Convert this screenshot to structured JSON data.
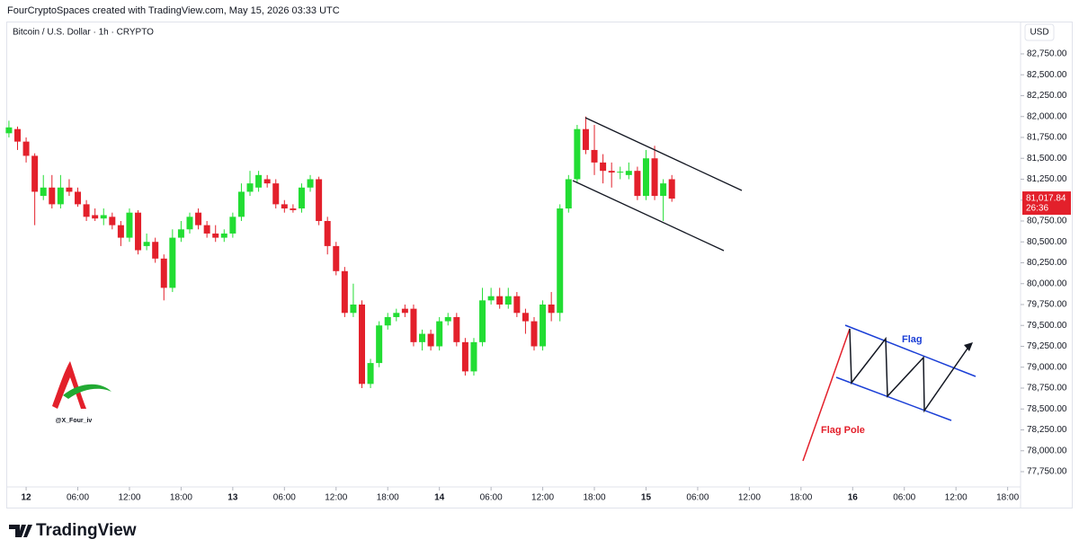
{
  "header": {
    "credit": "FourCryptoSpaces created with TradingView.com, May 15, 2026 03:33 UTC",
    "symbol": "Bitcoin / U.S. Dollar · 1h · CRYPTO",
    "currency": "USD"
  },
  "watermark": "@X_Four_iv",
  "footer": "TradingView",
  "chart_data": {
    "type": "candlestick",
    "up_color": "#22dd33",
    "down_color": "#e3202b",
    "x": [
      -2,
      -1,
      0,
      1,
      2,
      3,
      4,
      5,
      6,
      7,
      8,
      9,
      10,
      11,
      12,
      13,
      14,
      15,
      16,
      17,
      18,
      19,
      20,
      21,
      22,
      23,
      24,
      25,
      26,
      27,
      28,
      29,
      30,
      31,
      32,
      33,
      34,
      35,
      36,
      37,
      38,
      39,
      40,
      41,
      42,
      43,
      44,
      45,
      46,
      47,
      48,
      49,
      50,
      51,
      52,
      53,
      54,
      55,
      56,
      57,
      58,
      59,
      60,
      61,
      62,
      63,
      64,
      65,
      66,
      67,
      68,
      69,
      70,
      71,
      72,
      73,
      74,
      75
    ],
    "open": [
      81800,
      81850,
      81700,
      81530,
      81050,
      81150,
      80950,
      81150,
      81100,
      80950,
      80820,
      80780,
      80800,
      80700,
      80550,
      80850,
      80450,
      80500,
      80300,
      79950,
      80550,
      80650,
      80850,
      80700,
      80600,
      80550,
      80600,
      80800,
      81100,
      81150,
      81250,
      81200,
      80950,
      80900,
      80900,
      81150,
      81250,
      80750,
      80450,
      80150,
      79650,
      79750,
      78800,
      79050,
      79500,
      79600,
      79700,
      79700,
      79300,
      79400,
      79250,
      79550,
      79600,
      79300,
      78950,
      79300,
      79800,
      79850,
      79750,
      79850,
      79650,
      79550,
      79250,
      79750,
      79650,
      80900,
      81250,
      81850,
      81600,
      81450,
      81350,
      81330,
      81300,
      81350,
      81050,
      81500,
      81050,
      81250
    ],
    "high": [
      81950,
      81880,
      81750,
      81560,
      81300,
      81300,
      81300,
      81250,
      81150,
      81000,
      80900,
      80900,
      80850,
      80750,
      80900,
      80880,
      80600,
      80550,
      80350,
      80650,
      80750,
      80850,
      80900,
      80750,
      80700,
      80650,
      80850,
      81200,
      81350,
      81350,
      81300,
      81250,
      81000,
      80950,
      81200,
      81300,
      81280,
      80800,
      80500,
      80200,
      80000,
      79800,
      79100,
      79550,
      79650,
      79700,
      79750,
      79750,
      79450,
      79450,
      79600,
      79650,
      79650,
      79350,
      79350,
      79950,
      79950,
      79950,
      79950,
      79900,
      79700,
      79600,
      79800,
      79900,
      80950,
      81300,
      81900,
      82000,
      81900,
      81550,
      81450,
      81400,
      81450,
      81400,
      81600,
      81650,
      81250,
      81300
    ],
    "low": [
      81750,
      81600,
      81450,
      80700,
      81000,
      80900,
      80900,
      81050,
      80920,
      80750,
      80750,
      80700,
      80650,
      80450,
      80500,
      80350,
      80400,
      80250,
      79800,
      79900,
      80500,
      80600,
      80650,
      80550,
      80500,
      80500,
      80550,
      80750,
      81050,
      81100,
      81150,
      80900,
      80850,
      80850,
      80850,
      81100,
      80700,
      80350,
      80100,
      79600,
      79600,
      78750,
      78750,
      79000,
      79450,
      79550,
      79600,
      79250,
      79200,
      79200,
      79200,
      79500,
      79250,
      78900,
      78900,
      79250,
      79750,
      79700,
      79700,
      79600,
      79400,
      79200,
      79200,
      79550,
      79550,
      80850,
      81200,
      81550,
      81300,
      81200,
      81150,
      81250,
      81250,
      81000,
      81000,
      81000,
      80750,
      80980
    ],
    "close": [
      81870,
      81700,
      81530,
      81100,
      81150,
      80950,
      81150,
      81100,
      80950,
      80800,
      80780,
      80820,
      80700,
      80550,
      80850,
      80400,
      80500,
      80300,
      79950,
      80550,
      80650,
      80800,
      80700,
      80600,
      80550,
      80600,
      80800,
      81100,
      81200,
      81300,
      81200,
      80950,
      80900,
      80880,
      81150,
      81250,
      80750,
      80450,
      80150,
      79650,
      79750,
      78800,
      79050,
      79500,
      79600,
      79650,
      79650,
      79300,
      79400,
      79250,
      79550,
      79600,
      79300,
      78950,
      79300,
      79800,
      79850,
      79750,
      79850,
      79650,
      79550,
      79250,
      79750,
      79650,
      80900,
      81250,
      81850,
      81600,
      81450,
      81350,
      81330,
      81340,
      81350,
      81050,
      81500,
      81050,
      81200,
      81017.84
    ],
    "last_price": {
      "value": 81017.84,
      "label": "81,017.84"
    },
    "countdown": "26:36",
    "xlim": [
      -2.2,
      115.5
    ],
    "xticks": [
      {
        "value": 0,
        "label": "12"
      },
      {
        "value": 6,
        "label": "06:00"
      },
      {
        "value": 12,
        "label": "12:00"
      },
      {
        "value": 18,
        "label": "18:00"
      },
      {
        "value": 24,
        "label": "13"
      },
      {
        "value": 30,
        "label": "06:00"
      },
      {
        "value": 36,
        "label": "12:00"
      },
      {
        "value": 42,
        "label": "18:00"
      },
      {
        "value": 48,
        "label": "14"
      },
      {
        "value": 54,
        "label": "06:00"
      },
      {
        "value": 60,
        "label": "12:00"
      },
      {
        "value": 66,
        "label": "18:00"
      },
      {
        "value": 72,
        "label": "15"
      },
      {
        "value": 78,
        "label": "06:00"
      },
      {
        "value": 84,
        "label": "12:00"
      },
      {
        "value": 90,
        "label": "18:00"
      },
      {
        "value": 96,
        "label": "16"
      },
      {
        "value": 102,
        "label": "06:00"
      },
      {
        "value": 108,
        "label": "12:00"
      },
      {
        "value": 114,
        "label": "18:00"
      }
    ],
    "ylim": [
      77320,
      83126
    ],
    "yticks": [
      {
        "value": 77750,
        "label": "77,750.00"
      },
      {
        "value": 78000,
        "label": "78,000.00"
      },
      {
        "value": 78250,
        "label": "78,250.00"
      },
      {
        "value": 78500,
        "label": "78,500.00"
      },
      {
        "value": 78750,
        "label": "78,750.00"
      },
      {
        "value": 79000,
        "label": "79,000.00"
      },
      {
        "value": 79250,
        "label": "79,250.00"
      },
      {
        "value": 79500,
        "label": "79,500.00"
      },
      {
        "value": 79750,
        "label": "79,750.00"
      },
      {
        "value": 80000,
        "label": "80,000.00"
      },
      {
        "value": 80250,
        "label": "80,250.00"
      },
      {
        "value": 80500,
        "label": "80,500.00"
      },
      {
        "value": 80750,
        "label": "80,750.00"
      },
      {
        "value": 81000,
        "label": "81,000.00"
      },
      {
        "value": 81250,
        "label": "81,250.00"
      },
      {
        "value": 81500,
        "label": "81,500.00"
      },
      {
        "value": 81750,
        "label": "81,750.00"
      },
      {
        "value": 82000,
        "label": "82,000.00"
      },
      {
        "value": 82250,
        "label": "82,250.00"
      },
      {
        "value": 82500,
        "label": "82,500.00"
      },
      {
        "value": 82750,
        "label": "82,750.00"
      }
    ],
    "annotations": {
      "flag": "Flag",
      "flag_pole": "Flag Pole"
    }
  }
}
